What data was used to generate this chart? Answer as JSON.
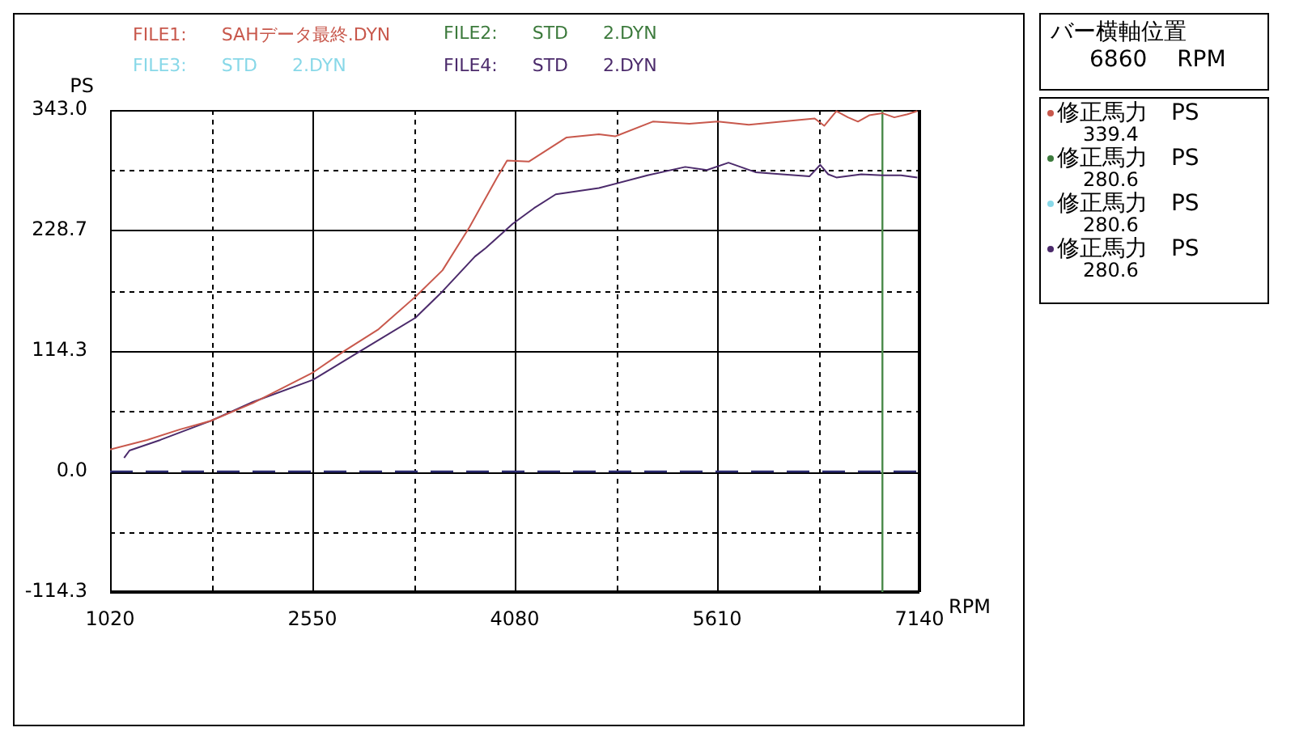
{
  "chart_data": {
    "type": "line",
    "xlabel": "RPM",
    "ylabel": "PS",
    "xlim": [
      1020,
      7140
    ],
    "xticks": [
      1020,
      {
        "value": 1785,
        "label": null
      },
      2550,
      {
        "value": 3315,
        "label": null
      },
      4080,
      {
        "value": 4845,
        "label": null
      },
      5610,
      {
        "value": 6375,
        "label": null
      },
      7140
    ],
    "ylim": [
      -114.3,
      343.0
    ],
    "yticks": [
      {
        "value": -114.3,
        "label": "-114.3"
      },
      {
        "value": -57.15,
        "label": null
      },
      {
        "value": 0,
        "label": "0.0"
      },
      {
        "value": 57.15,
        "label": null
      },
      {
        "value": 114.3,
        "label": "114.3"
      },
      {
        "value": 171.5,
        "label": null
      },
      {
        "value": 228.7,
        "label": "228.7"
      },
      {
        "value": 285.85,
        "label": null
      },
      {
        "value": 343.0,
        "label": "343.0"
      }
    ],
    "grid": true,
    "legend": "right",
    "marker": "none",
    "line_style": "solid",
    "series": [
      {
        "name": "修正馬力 PS",
        "color": "#c8584c",
        "x": [
          1020,
          1300,
          1550,
          1779,
          2100,
          2554,
          2799,
          3050,
          3330,
          3534,
          3738,
          3942,
          4022,
          4186,
          4472,
          4716,
          4839,
          5124,
          5400,
          5614,
          5850,
          6104,
          6348,
          6420,
          6512,
          6600,
          6675,
          6760,
          6859,
          6950,
          7050,
          7124
        ],
        "values": [
          21,
          30,
          40,
          48,
          65,
          94,
          115,
          135,
          166,
          191,
          232,
          278,
          295,
          294,
          317,
          320,
          318,
          332,
          330,
          332,
          329,
          332,
          335,
          328,
          342,
          336,
          332,
          338,
          340,
          336,
          339,
          342
        ]
      },
      {
        "name": "修正馬力 PS",
        "color": "#3c7a3c"
      },
      {
        "name": "修正馬力 PS",
        "color": "#88d8e8"
      },
      {
        "name": "修正馬力 PS",
        "color": "#4b2a6b",
        "x": [
          1126,
          1167,
          1400,
          1779,
          2100,
          2554,
          2922,
          3330,
          3534,
          3779,
          3860,
          4064,
          4227,
          4390,
          4716,
          5084,
          5369,
          5533,
          5696,
          5900,
          6100,
          6308,
          6390,
          6450,
          6512,
          6700,
          6859,
          7000,
          7124
        ],
        "values": [
          13,
          20,
          30,
          48,
          66,
          87,
          115,
          146,
          171,
          204,
          212,
          235,
          250,
          263,
          269,
          281,
          289,
          286,
          293,
          284,
          282,
          280,
          291,
          282,
          279,
          282,
          281,
          281,
          279
        ]
      }
    ],
    "ref_lines": [
      {
        "axis": "y",
        "value": 0,
        "color": "#2a2a70",
        "line_style": "dashed"
      },
      {
        "axis": "x",
        "value": 6860,
        "color": "#4a8a4a",
        "line_style": "solid"
      }
    ],
    "annotations": [
      "FILE1: SAHデータ最終.DYN",
      "FILE2: STD 2.DYN",
      "FILE3: STD 2.DYN",
      "FILE4: STD 2.DYN",
      "バー横軸位置",
      "6860 RPM",
      "339.4",
      "280.6",
      "280.6",
      "280.6"
    ]
  }
}
